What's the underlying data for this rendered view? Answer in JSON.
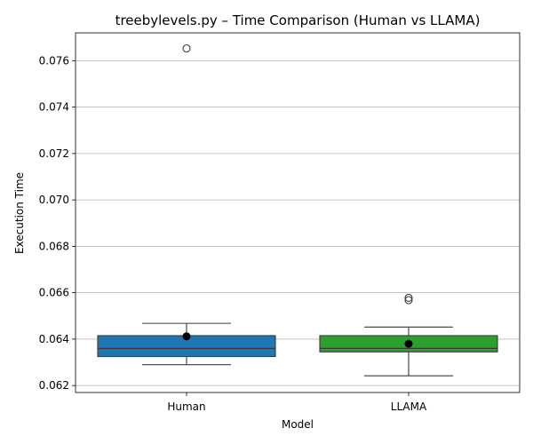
{
  "chart_data": {
    "type": "box",
    "title": "treebylevels.py – Time Comparison (Human vs LLAMA)",
    "xlabel": "Model",
    "ylabel": "Execution Time",
    "ylim": [
      0.0617,
      0.0772
    ],
    "yticks": [
      "0.062",
      "0.064",
      "0.066",
      "0.068",
      "0.070",
      "0.072",
      "0.074",
      "0.076"
    ],
    "grid": "y",
    "categories": [
      "Human",
      "LLAMA"
    ],
    "boxes": [
      {
        "name": "Human",
        "color": "#1f77b4",
        "whisker_low": 0.0629,
        "q1": 0.06325,
        "median": 0.0636,
        "q3": 0.06415,
        "whisker_high": 0.06468,
        "mean": 0.06412,
        "outliers": [
          0.07653
        ]
      },
      {
        "name": "LLAMA",
        "color": "#2ca02c",
        "whisker_low": 0.06242,
        "q1": 0.06345,
        "median": 0.0636,
        "q3": 0.06415,
        "whisker_high": 0.06452,
        "mean": 0.0638,
        "outliers": [
          0.06568,
          0.06578
        ]
      }
    ]
  }
}
